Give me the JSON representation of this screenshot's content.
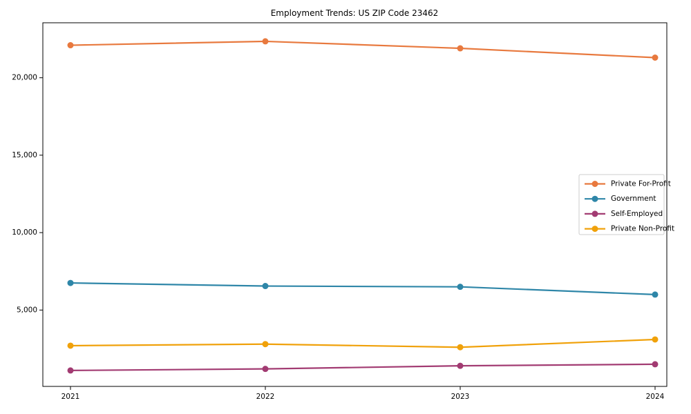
{
  "chart_data": {
    "type": "line",
    "title": "Employment Trends: US ZIP Code 23462",
    "x": [
      "2021",
      "2022",
      "2023",
      "2024"
    ],
    "series": [
      {
        "name": "Private For-Profit",
        "color": "#E8793E",
        "values": [
          22100,
          22350,
          21900,
          21300
        ]
      },
      {
        "name": "Government",
        "color": "#2E86A8",
        "values": [
          6750,
          6550,
          6500,
          6000
        ]
      },
      {
        "name": "Self-Employed",
        "color": "#A23B72",
        "values": [
          1100,
          1200,
          1400,
          1500
        ]
      },
      {
        "name": "Private Non-Profit",
        "color": "#F0A10A",
        "values": [
          2700,
          2800,
          2600,
          3100
        ]
      }
    ],
    "yticks": [
      5000,
      10000,
      15000,
      20000
    ],
    "ytick_labels": [
      "5,000",
      "10,000",
      "15,000",
      "20,000"
    ],
    "ylim": [
      70,
      23550
    ],
    "xlabel": "",
    "ylabel": "",
    "grid": false,
    "marker": "circle",
    "legend_position": "center right",
    "spine_color": "#000000",
    "legend_border_color": "#cccccc",
    "legend_background": "#ffffff"
  }
}
